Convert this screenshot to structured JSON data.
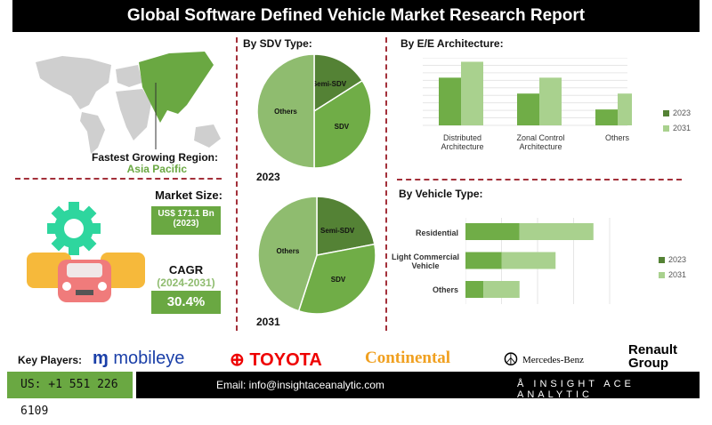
{
  "title": "Global Software Defined Vehicle Market  Research Report",
  "region": {
    "label": "Fastest Growing Region:",
    "value": "Asia Pacific"
  },
  "market_size": {
    "label": "Market Size:",
    "value": "US$ 171.1 Bn",
    "year": "(2023)"
  },
  "cagr": {
    "label": "CAGR",
    "period": "(2024-2031)",
    "value": "30.4%"
  },
  "colors": {
    "dark_green": "#548235",
    "mid_green": "#70ad47",
    "light_green": "#a9d18e",
    "pie_light": "#8fbc6f",
    "accent_red": "#a3303a"
  },
  "chart_data": [
    {
      "type": "pie",
      "title": "By SDV Type:",
      "label": "2023",
      "slices": [
        {
          "name": "Semi-SDV",
          "value": 16
        },
        {
          "name": "SDV",
          "value": 34
        },
        {
          "name": "Others",
          "value": 50
        }
      ]
    },
    {
      "type": "pie",
      "label": "2031",
      "slices": [
        {
          "name": "Semi-SDV",
          "value": 22
        },
        {
          "name": "SDV",
          "value": 33
        },
        {
          "name": "Others",
          "value": 45
        }
      ]
    },
    {
      "type": "bar",
      "title": "By E/E Architecture:",
      "categories": [
        "Distributed Architecture",
        "Zonal Control Architecture",
        "Others"
      ],
      "series": [
        {
          "name": "2023",
          "values": [
            6,
            4,
            2
          ]
        },
        {
          "name": "2031",
          "values": [
            8,
            6,
            4
          ]
        }
      ],
      "grid": true,
      "legend": "right"
    },
    {
      "type": "bar",
      "orientation": "horizontal",
      "stacked": true,
      "title": "By Vehicle Type:",
      "categories": [
        "Residential",
        "Light Commercial Vehicle",
        "Others"
      ],
      "series": [
        {
          "name": "2023",
          "values": [
            1.5,
            1,
            0.5
          ]
        },
        {
          "name": "2031",
          "values": [
            2.05,
            1.5,
            1
          ]
        }
      ],
      "grid": true,
      "legend": "right"
    }
  ],
  "footer": {
    "key_players_label": "Key Players:",
    "players": [
      "mobileye",
      "TOYOTA",
      "Continental",
      "Mercedes-Benz",
      "Renault Group"
    ],
    "phone": "US: +1 551 226 6109",
    "email": "Email: info@insightaceanalytic.com",
    "brand": "INSIGHT ACE ANALYTIC"
  }
}
